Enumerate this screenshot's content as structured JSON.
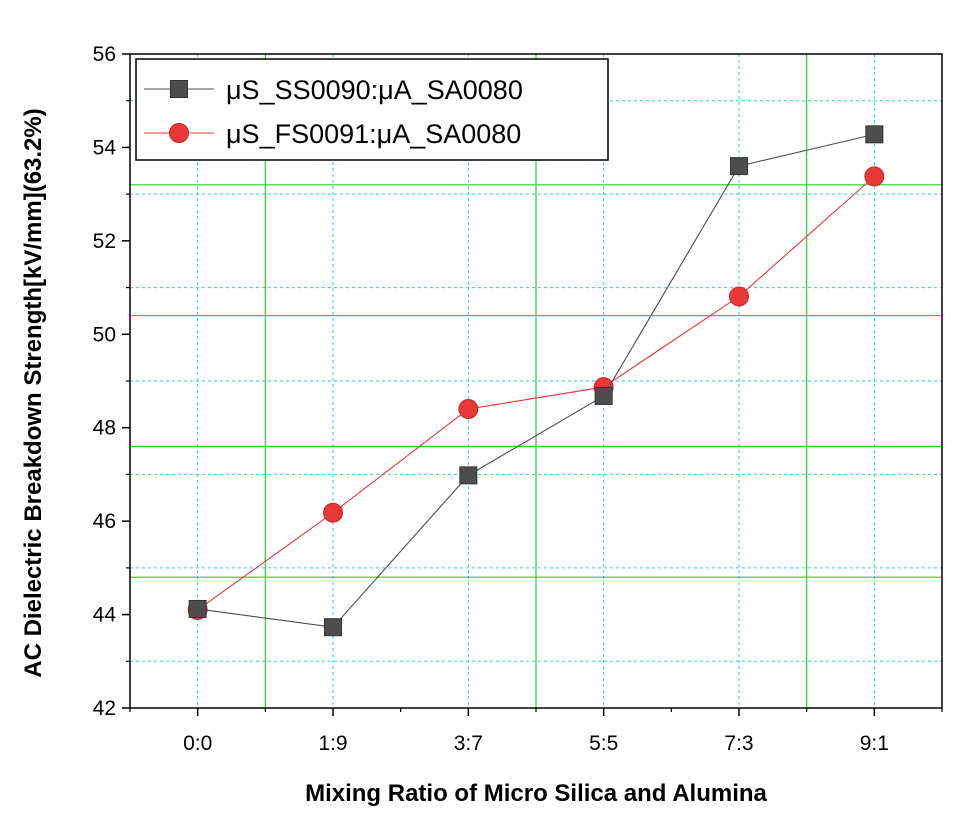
{
  "chart_data": {
    "type": "line",
    "title": "",
    "xlabel": "Mixing Ratio of Micro Silica and Alumina",
    "ylabel": "AC Dielectric Breakdown Strength[kV/mm](63.2%)",
    "categories": [
      "0:0",
      "1:9",
      "3:7",
      "5:5",
      "7:3",
      "9:1"
    ],
    "ylim": [
      42,
      56
    ],
    "yticks": [
      42,
      44,
      46,
      48,
      50,
      52,
      54,
      56
    ],
    "legend_position": "top-left",
    "grid": true,
    "series": [
      {
        "name": "μS_SS0090:μA_SA0080",
        "color": "#4d4d4d",
        "marker": "square",
        "values": [
          44.12,
          43.73,
          46.98,
          48.68,
          53.6,
          54.28
        ]
      },
      {
        "name": "μS_FS0091:μA_SA0080",
        "color": "#e83838",
        "marker": "circle",
        "values": [
          44.1,
          46.18,
          48.4,
          48.87,
          50.81,
          53.38
        ]
      }
    ]
  }
}
